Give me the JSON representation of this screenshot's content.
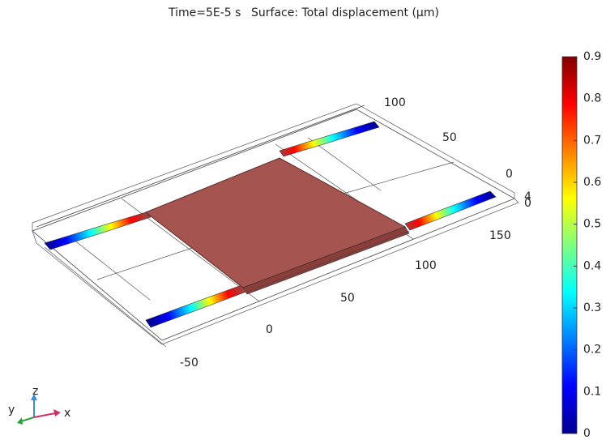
{
  "chart_data": {
    "type": "surface3d",
    "time_label": "Time=5E-5 s",
    "title": "Surface: Total displacement (µm)",
    "xticks": [
      -50,
      0,
      50,
      100,
      150
    ],
    "yticks": [
      0,
      50,
      100
    ],
    "zticks": [
      0,
      4
    ],
    "colorbar": {
      "clim": [
        0,
        0.9
      ],
      "ticks": [
        0,
        0.1,
        0.2,
        0.3,
        0.4,
        0.5,
        0.6,
        0.7,
        0.8,
        0.9
      ]
    },
    "triad": {
      "x": "x",
      "y": "y",
      "z": "z"
    }
  }
}
